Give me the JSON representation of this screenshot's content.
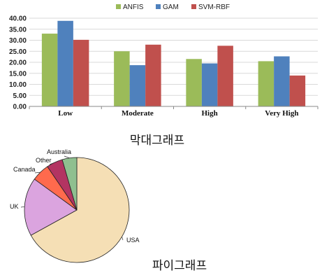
{
  "chart_data": [
    {
      "type": "bar",
      "categories": [
        "Low",
        "Moderate",
        "High",
        "Very High"
      ],
      "series": [
        {
          "name": "ANFIS",
          "color": "#9bbb59",
          "values": [
            33.0,
            25.0,
            21.5,
            20.5
          ]
        },
        {
          "name": "GAM",
          "color": "#4f81bd",
          "values": [
            38.8,
            18.7,
            19.5,
            22.7
          ]
        },
        {
          "name": "SVM-RBF",
          "color": "#c0504d",
          "values": [
            30.2,
            28.0,
            27.5,
            14.0
          ]
        }
      ],
      "ylim": [
        0,
        40
      ],
      "yticks": [
        "0.00",
        "5.00",
        "10.00",
        "15.00",
        "20.00",
        "25.00",
        "30.00",
        "35.00",
        "40.00"
      ],
      "legend_position": "top",
      "grid": "horizontal",
      "caption": "막대그래프"
    },
    {
      "type": "pie",
      "slices": [
        {
          "label": "USA",
          "value": 67,
          "color": "#f5dfb5"
        },
        {
          "label": "UK",
          "value": 18,
          "color": "#dba4df"
        },
        {
          "label": "Canada",
          "value": 5.5,
          "color": "#ff6a4d"
        },
        {
          "label": "Other",
          "value": 5,
          "color": "#b33462"
        },
        {
          "label": "Australia",
          "value": 4.5,
          "color": "#8fbf8f"
        }
      ],
      "caption": "파이그래프"
    }
  ]
}
